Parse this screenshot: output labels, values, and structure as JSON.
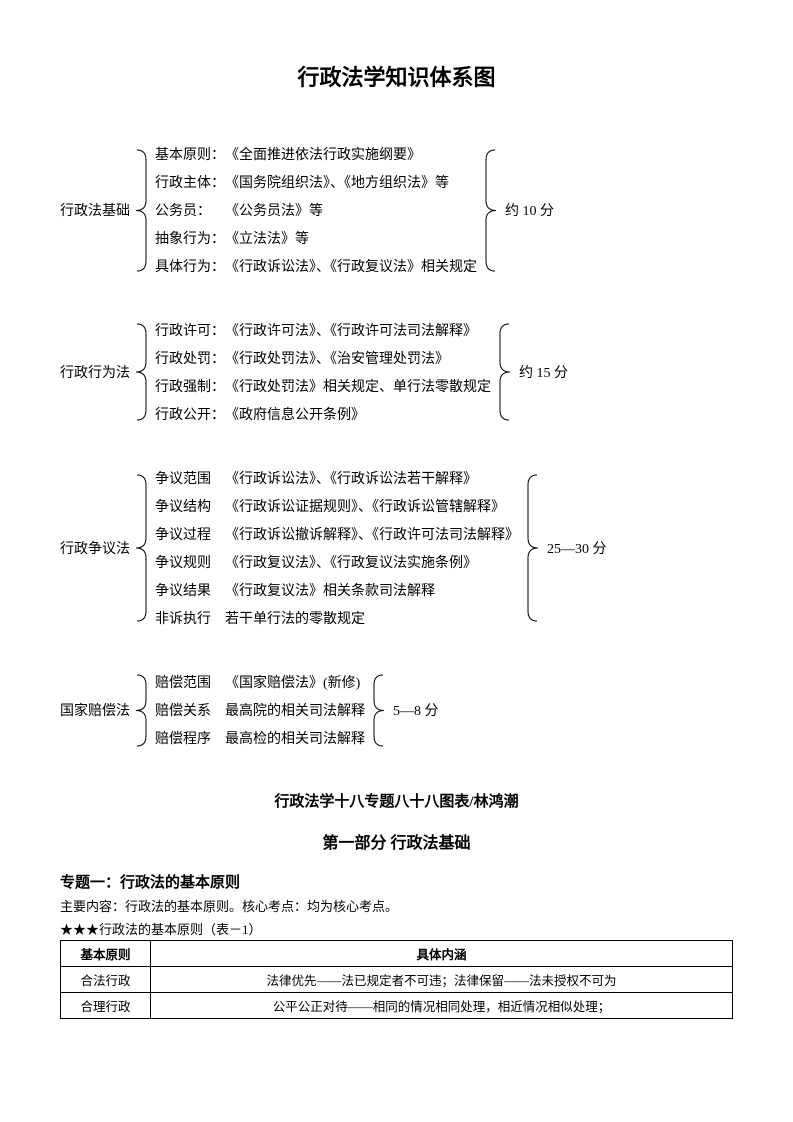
{
  "title": "行政法学知识体系图",
  "sections": [
    {
      "label": "行政法基础",
      "score": "约 10 分",
      "items": [
        {
          "key": "基本原则：",
          "val": "《全面推进依法行政实施纲要》"
        },
        {
          "key": "行政主体：",
          "val": "《国务院组织法》、《地方组织法》等"
        },
        {
          "key": "公务员：",
          "val": "《公务员法》等"
        },
        {
          "key": "抽象行为：",
          "val": "《立法法》等"
        },
        {
          "key": "具体行为：",
          "val": "《行政诉讼法》、《行政复议法》相关规定"
        }
      ]
    },
    {
      "label": "行政行为法",
      "score": "约 15 分",
      "items": [
        {
          "key": "行政许可：",
          "val": "《行政许可法》、《行政许可法司法解释》"
        },
        {
          "key": "行政处罚：",
          "val": "《行政处罚法》、《治安管理处罚法》"
        },
        {
          "key": "行政强制：",
          "val": "《行政处罚法》相关规定、单行法零散规定"
        },
        {
          "key": "行政公开：",
          "val": "《政府信息公开条例》"
        }
      ]
    },
    {
      "label": "行政争议法",
      "score": "25—30 分",
      "items": [
        {
          "key": "争议范围",
          "val": "《行政诉讼法》、《行政诉讼法若干解释》"
        },
        {
          "key": "争议结构",
          "val": "《行政诉讼证据规则》、《行政诉讼管辖解释》"
        },
        {
          "key": "争议过程",
          "val": "《行政诉讼撤诉解释》、《行政许可法司法解释》"
        },
        {
          "key": "争议规则",
          "val": "《行政复议法》、《行政复议法实施条例》"
        },
        {
          "key": "争议结果",
          "val": "《行政复议法》相关条款司法解释"
        },
        {
          "key": "非诉执行",
          "val": "若干单行法的零散规定"
        }
      ]
    },
    {
      "label": "国家赔偿法",
      "score": "5—8 分",
      "items": [
        {
          "key": "赔偿范围",
          "val": "《国家赔偿法》(新修)"
        },
        {
          "key": "赔偿关系",
          "val": "最高院的相关司法解释"
        },
        {
          "key": "赔偿程序",
          "val": "最高检的相关司法解释"
        }
      ]
    }
  ],
  "subtitle": "行政法学十八专题八十八图表/林鸿潮",
  "partTitle": "第一部分  行政法基础",
  "topic": {
    "title": "专题一：行政法的基本原则",
    "desc": "主要内容：行政法的基本原则。核心考点：均为核心考点。",
    "caption": "★★★行政法的基本原则（表－1）"
  },
  "table": {
    "headers": [
      "基本原则",
      "具体内涵"
    ],
    "rows": [
      [
        "合法行政",
        "法律优先——法已规定者不可违；法律保留——法未授权不可为"
      ],
      [
        "合理行政",
        "公平公正对待——相同的情况相同处理，相近情况相似处理；"
      ]
    ]
  },
  "style": {
    "brace_color": "#000000",
    "row_heights": {
      "5": 125,
      "4": 100,
      "6": 150,
      "3": 75
    }
  }
}
